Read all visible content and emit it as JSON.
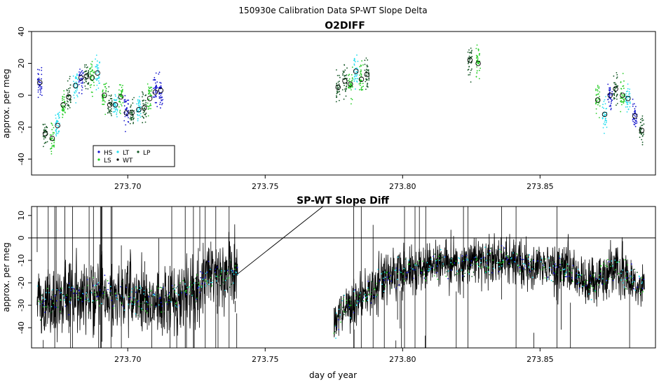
{
  "figure": {
    "title": "150930e   Calibration Data SP-WT Slope Delta",
    "xlabel": "day of year"
  },
  "colors": {
    "HS": "#1111cc",
    "LS": "#22cc22",
    "LT": "#22ddee",
    "WT": "#000000",
    "LP": "#115522",
    "line": "#000000"
  },
  "chart_data": [
    {
      "type": "scatter",
      "title": "O2DIFF",
      "ylabel": "approx. per meg",
      "xlim": [
        273.665,
        273.892
      ],
      "ylim": [
        -50,
        40
      ],
      "yticks": [
        -40,
        -20,
        0,
        20,
        40
      ],
      "xticks": [
        273.7,
        273.75,
        273.8,
        273.85
      ],
      "xtick_labels": [
        "273.70",
        "273.75",
        "273.80",
        "273.85"
      ],
      "legend": {
        "placement": "bottom-left",
        "entries": [
          "HS",
          "LS",
          "LT",
          "WT",
          "LP"
        ]
      },
      "groups": [
        {
          "x": 273.668,
          "y": 8,
          "series": "HS"
        },
        {
          "x": 273.67,
          "y": -24,
          "series": "LP"
        },
        {
          "x": 273.6725,
          "y": -27,
          "series": "LS"
        },
        {
          "x": 273.6745,
          "y": -19,
          "series": "LT"
        },
        {
          "x": 273.6765,
          "y": -6,
          "series": "LS"
        },
        {
          "x": 273.6785,
          "y": -1,
          "series": "LP"
        },
        {
          "x": 273.681,
          "y": 6,
          "series": "LT"
        },
        {
          "x": 273.683,
          "y": 11,
          "series": "HS"
        },
        {
          "x": 273.685,
          "y": 12,
          "series": "LP"
        },
        {
          "x": 273.687,
          "y": 11,
          "series": "LS"
        },
        {
          "x": 273.689,
          "y": 14,
          "series": "LT"
        },
        {
          "x": 273.6915,
          "y": 0,
          "series": "LS"
        },
        {
          "x": 273.6935,
          "y": -6,
          "series": "LP"
        },
        {
          "x": 273.6955,
          "y": -6,
          "series": "LT"
        },
        {
          "x": 273.6975,
          "y": -1,
          "series": "LS"
        },
        {
          "x": 273.6995,
          "y": -11,
          "series": "HS"
        },
        {
          "x": 273.7015,
          "y": -11,
          "series": "LP"
        },
        {
          "x": 273.704,
          "y": -9,
          "series": "LT"
        },
        {
          "x": 273.706,
          "y": -8,
          "series": "LP"
        },
        {
          "x": 273.708,
          "y": -2,
          "series": "LS"
        },
        {
          "x": 273.71,
          "y": 2,
          "series": "HS"
        },
        {
          "x": 273.712,
          "y": 3,
          "series": "HS"
        },
        {
          "x": 273.7765,
          "y": 5,
          "series": "LP"
        },
        {
          "x": 273.779,
          "y": 9,
          "series": "LP"
        },
        {
          "x": 273.781,
          "y": 7,
          "series": "LS"
        },
        {
          "x": 273.783,
          "y": 15,
          "series": "LT"
        },
        {
          "x": 273.785,
          "y": 10,
          "series": "LS"
        },
        {
          "x": 273.787,
          "y": 13,
          "series": "LP"
        },
        {
          "x": 273.8245,
          "y": 22,
          "series": "LP"
        },
        {
          "x": 273.8275,
          "y": 20,
          "series": "LS"
        },
        {
          "x": 273.871,
          "y": -3,
          "series": "LS"
        },
        {
          "x": 273.8735,
          "y": -12,
          "series": "LT"
        },
        {
          "x": 273.8755,
          "y": 0,
          "series": "HS"
        },
        {
          "x": 273.8775,
          "y": 4,
          "series": "LP"
        },
        {
          "x": 273.88,
          "y": 0,
          "series": "LS"
        },
        {
          "x": 273.882,
          "y": -2,
          "series": "LT"
        },
        {
          "x": 273.8845,
          "y": -13,
          "series": "HS"
        },
        {
          "x": 273.887,
          "y": -22,
          "series": "LP"
        }
      ]
    },
    {
      "type": "line",
      "title": "SP-WT Slope Diff",
      "ylabel": "approx. per meg",
      "xlabel": "day of year",
      "xlim": [
        273.665,
        273.892
      ],
      "ylim": [
        -49,
        14
      ],
      "yticks": [
        -40,
        -30,
        -20,
        -10,
        0,
        10
      ],
      "xticks": [
        273.7,
        273.75,
        273.8,
        273.85
      ],
      "xtick_labels": [
        "273.70",
        "273.75",
        "273.80",
        "273.85"
      ],
      "hline": 0,
      "segments": [
        {
          "x0": 273.667,
          "x1": 273.74,
          "baseline": [
            [
              273.667,
              -28
            ],
            [
              273.672,
              -29
            ],
            [
              273.678,
              -27
            ],
            [
              273.688,
              -24
            ],
            [
              273.695,
              -26
            ],
            [
              273.705,
              -28
            ],
            [
              273.715,
              -27
            ],
            [
              273.725,
              -22
            ],
            [
              273.732,
              -16
            ],
            [
              273.74,
              -16
            ]
          ],
          "amplitude": 14,
          "spike_count": 40
        },
        {
          "x0": 273.775,
          "x1": 273.888,
          "baseline": [
            [
              273.775,
              -40
            ],
            [
              273.778,
              -31
            ],
            [
              273.785,
              -27
            ],
            [
              273.792,
              -20
            ],
            [
              273.8,
              -15
            ],
            [
              273.81,
              -12
            ],
            [
              273.822,
              -11
            ],
            [
              273.835,
              -10
            ],
            [
              273.848,
              -12
            ],
            [
              273.86,
              -14
            ],
            [
              273.868,
              -21
            ],
            [
              273.876,
              -14
            ],
            [
              273.882,
              -18
            ],
            [
              273.888,
              -20
            ]
          ],
          "amplitude": 10,
          "spike_count": 30
        }
      ],
      "connector": [
        [
          273.74,
          -16
        ],
        [
          273.771,
          14
        ]
      ]
    }
  ]
}
